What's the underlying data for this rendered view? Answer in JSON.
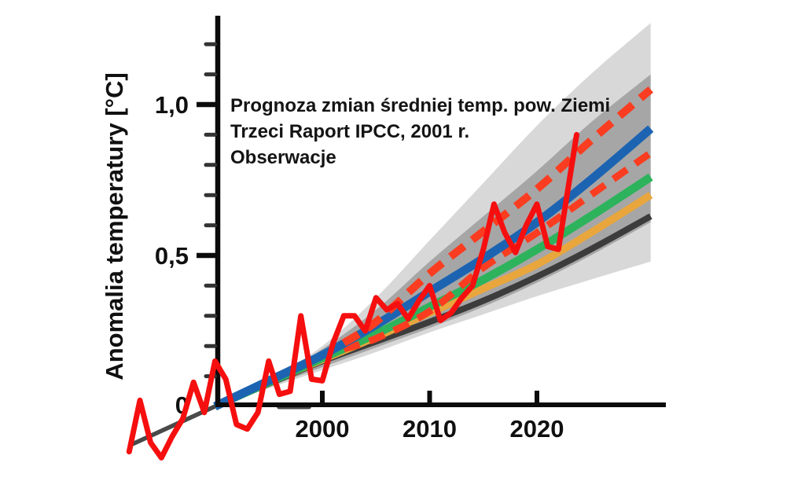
{
  "page": {
    "background": "#ffffff",
    "description_labels": {
      "ylabel": "Anomalia temperatury [°C]"
    }
  },
  "chart_data": {
    "type": "line",
    "ylabel": "Anomalia temperatury [°C]",
    "xlabel": "",
    "annotation": {
      "line1": "Prognoza zmian średniej temp. pow. Ziemi",
      "line2": "Trzeci Raport IPCC, 2001 r.",
      "obs_label": "Obserwacje"
    },
    "axes": {
      "x": {
        "range": [
          1981.5,
          2032
        ],
        "ticks": [
          {
            "year": 2000,
            "label": "2000"
          },
          {
            "year": 2010,
            "label": "2010"
          },
          {
            "year": 2020,
            "label": "2020"
          }
        ]
      },
      "y": {
        "range": [
          -0.3,
          1.3
        ],
        "unit": "°C",
        "zero_label": "0",
        "major_ticks": [
          {
            "value": 0.5,
            "label": "0,5"
          },
          {
            "value": 1.0,
            "label": "1,0"
          }
        ],
        "minor_tick_values": [
          0.1,
          0.2,
          0.3,
          0.4,
          0.6,
          0.7,
          0.8,
          0.9,
          1.1,
          1.2
        ]
      },
      "grid": false,
      "legend": "inline-annotation top-left"
    },
    "bands": [
      {
        "name": "outer-uncertainty-band",
        "color": "#d8d8d8",
        "years": [
          1990,
          1995,
          2000,
          2005,
          2010,
          2015,
          2020,
          2025,
          2030.6
        ],
        "top": [
          0.0,
          0.09,
          0.2,
          0.36,
          0.55,
          0.74,
          0.93,
          1.1,
          1.27
        ],
        "bottom": [
          0.0,
          0.06,
          0.12,
          0.18,
          0.245,
          0.305,
          0.365,
          0.42,
          0.48
        ]
      },
      {
        "name": "inner-uncertainty-band",
        "color": "#a6a6a6",
        "years": [
          1990,
          1995,
          2000,
          2005,
          2010,
          2015,
          2020,
          2025,
          2030.6
        ],
        "top": [
          0.0,
          0.085,
          0.19,
          0.32,
          0.48,
          0.63,
          0.78,
          0.94,
          1.1
        ],
        "bottom": [
          0.0,
          0.065,
          0.13,
          0.195,
          0.26,
          0.33,
          0.41,
          0.5,
          0.61
        ]
      }
    ],
    "projections": [
      {
        "name": "pre-1990-observed-trend",
        "color": "#4a4a4a",
        "width": 5.5,
        "dash": null,
        "years": [
          1982.3,
          1990
        ],
        "values": [
          -0.125,
          0.0
        ]
      },
      {
        "name": "ipcc-projection-low-black",
        "color": "#3c3c3c",
        "width": 8,
        "dash": null,
        "years": [
          1990,
          1995,
          2000,
          2005,
          2010,
          2015,
          2020,
          2025,
          2030.6
        ],
        "values": [
          0.0,
          0.075,
          0.15,
          0.215,
          0.28,
          0.35,
          0.43,
          0.52,
          0.63
        ]
      },
      {
        "name": "ipcc-projection-orange",
        "color": "#e9a63d",
        "width": 9.5,
        "dash": null,
        "years": [
          1990,
          1995,
          2000,
          2005,
          2010,
          2015,
          2020,
          2025,
          2030.6
        ],
        "values": [
          0.0,
          0.08,
          0.155,
          0.23,
          0.31,
          0.39,
          0.47,
          0.575,
          0.7
        ]
      },
      {
        "name": "ipcc-projection-green",
        "color": "#2db35c",
        "width": 10.5,
        "dash": null,
        "years": [
          1990,
          1995,
          2000,
          2005,
          2010,
          2015,
          2020,
          2025,
          2030.6
        ],
        "values": [
          0.0,
          0.08,
          0.16,
          0.24,
          0.33,
          0.42,
          0.52,
          0.63,
          0.76
        ]
      },
      {
        "name": "ipcc-projection-mid-red-dashed",
        "color": "#fa3d20",
        "width": 9,
        "dash": "21 13",
        "years": [
          2002,
          2005,
          2010,
          2015,
          2020,
          2025,
          2030.6
        ],
        "values": [
          0.19,
          0.225,
          0.315,
          0.46,
          0.575,
          0.7,
          0.84
        ]
      },
      {
        "name": "ipcc-projection-blue",
        "color": "#1c64b2",
        "width": 11,
        "dash": null,
        "years": [
          1990,
          1995,
          2000,
          2005,
          2010,
          2015,
          2020,
          2025,
          2030.6
        ],
        "values": [
          0.0,
          0.085,
          0.17,
          0.27,
          0.38,
          0.49,
          0.61,
          0.75,
          0.92
        ]
      },
      {
        "name": "ipcc-projection-high-red-dashed",
        "color": "#fa3d20",
        "width": 10,
        "dash": "22 13",
        "years": [
          2002,
          2005,
          2010,
          2015,
          2020,
          2025,
          2030.6
        ],
        "values": [
          0.21,
          0.28,
          0.44,
          0.58,
          0.72,
          0.88,
          1.05
        ]
      }
    ],
    "observations": {
      "name": "observed-temperature-anomaly",
      "color": "#f50f0f",
      "width": 7,
      "years": [
        1982,
        1983,
        1984,
        1985,
        1986,
        1987,
        1988,
        1989,
        1990,
        1991,
        1992,
        1993,
        1994,
        1995,
        1996,
        1997,
        1998,
        1999,
        2000,
        2001,
        2002,
        2003,
        2004,
        2005,
        2006,
        2007,
        2008,
        2009,
        2010,
        2011,
        2012,
        2013,
        2014,
        2015,
        2016,
        2017,
        2018,
        2019,
        2020,
        2021,
        2022,
        2023.7
      ],
      "values": [
        -0.15,
        0.02,
        -0.12,
        -0.17,
        -0.1,
        -0.04,
        0.08,
        -0.02,
        0.15,
        0.09,
        -0.06,
        -0.075,
        -0.02,
        0.15,
        0.04,
        0.05,
        0.3,
        0.09,
        0.085,
        0.21,
        0.3,
        0.3,
        0.25,
        0.36,
        0.32,
        0.34,
        0.29,
        0.35,
        0.4,
        0.285,
        0.31,
        0.36,
        0.4,
        0.52,
        0.67,
        0.575,
        0.51,
        0.6,
        0.67,
        0.53,
        0.52,
        0.9
      ]
    },
    "colors": {
      "axis": "#0b0b0b",
      "text": "#141414",
      "observation_red": "#f50f0f",
      "projection_dashed_red": "#fa3d20",
      "projection_blue": "#1c64b2",
      "projection_green": "#2db35c",
      "projection_orange": "#e9a63d",
      "projection_black": "#3c3c3c",
      "band_inner": "#a6a6a6",
      "band_outer": "#d8d8d8"
    }
  }
}
